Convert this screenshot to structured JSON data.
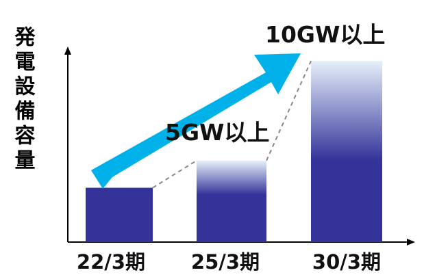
{
  "chart_data": {
    "type": "bar",
    "ylabel": "発電設備容量",
    "categories": [
      "22/3期",
      "25/3期",
      "30/3期"
    ],
    "values": [
      3,
      4.5,
      10
    ],
    "annotations": [
      "5GW以上",
      "10GW以上"
    ],
    "ylim": [
      0,
      10.8
    ],
    "grid": false,
    "colors": {
      "bar": "#333399",
      "bar_fade": "#e6f0fa",
      "arrow": "#00b0e8",
      "dashed": "#888888",
      "axis": "#000000"
    }
  }
}
